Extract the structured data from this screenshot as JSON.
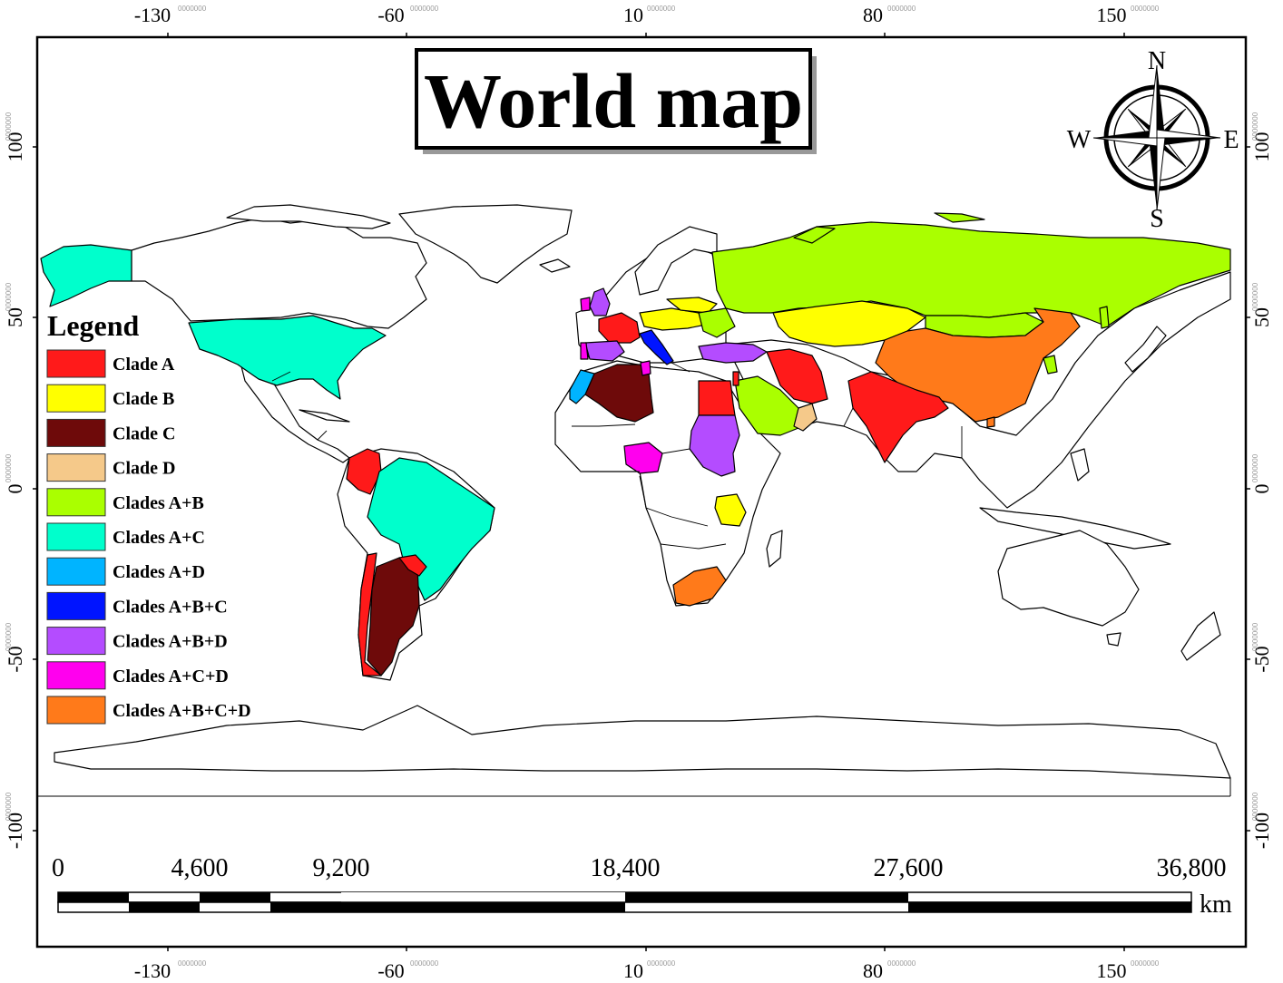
{
  "title": "World map",
  "axis": {
    "x_ticks": [
      {
        "label": "-130",
        "sup": "0000000"
      },
      {
        "label": "-60",
        "sup": "0000000"
      },
      {
        "label": "10",
        "sup": "0000000"
      },
      {
        "label": "80",
        "sup": "0000000"
      },
      {
        "label": "150",
        "sup": "0000000"
      }
    ],
    "y_ticks": [
      {
        "label": "100",
        "sup": "0000000"
      },
      {
        "label": "50",
        "sup": "0000000"
      },
      {
        "label": "0",
        "sup": "0000000"
      },
      {
        "label": "-50",
        "sup": "0000000"
      },
      {
        "label": "-100",
        "sup": "0000000"
      }
    ]
  },
  "compass": {
    "n": "N",
    "s": "S",
    "e": "E",
    "w": "W"
  },
  "legend": {
    "title": "Legend",
    "items": [
      {
        "label": "Clade A",
        "color": "#ff1a1a"
      },
      {
        "label": "Clade B",
        "color": "#ffff00"
      },
      {
        "label": "Clade C",
        "color": "#6e0a0a"
      },
      {
        "label": "Clade D",
        "color": "#f5c98a"
      },
      {
        "label": "Clades A+B",
        "color": "#aaff00"
      },
      {
        "label": "Clades A+C",
        "color": "#00ffcc"
      },
      {
        "label": "Clades A+D",
        "color": "#00b4ff"
      },
      {
        "label": "Clades A+B+C",
        "color": "#0014ff"
      },
      {
        "label": "Clades A+B+D",
        "color": "#b44cff"
      },
      {
        "label": "Clades A+C+D",
        "color": "#ff00ee"
      },
      {
        "label": "Clades A+B+C+D",
        "color": "#ff7a1a"
      }
    ]
  },
  "scale_bar": {
    "labels": [
      "0",
      "4,600",
      "9,200",
      "18,400",
      "27,600",
      "36,800"
    ],
    "unit": "km"
  },
  "regions": [
    {
      "name": "Russia",
      "clade": "Clades A+B"
    },
    {
      "name": "China",
      "clade": "Clades A+B+C+D"
    },
    {
      "name": "USA",
      "clade": "Clades A+C"
    },
    {
      "name": "Alaska",
      "clade": "Clades A+C"
    },
    {
      "name": "Brazil",
      "clade": "Clades A+C"
    },
    {
      "name": "Argentina",
      "clade": "Clade C"
    },
    {
      "name": "Chile",
      "clade": "Clade A"
    },
    {
      "name": "Colombia",
      "clade": "Clade A"
    },
    {
      "name": "India",
      "clade": "Clade A"
    },
    {
      "name": "Iran",
      "clade": "Clade A"
    },
    {
      "name": "Egypt",
      "clade": "Clade A"
    },
    {
      "name": "France",
      "clade": "Clade A"
    },
    {
      "name": "Algeria",
      "clade": "Clade C"
    },
    {
      "name": "Morocco",
      "clade": "Clades A+D"
    },
    {
      "name": "Nigeria",
      "clade": "Clades A+C+D"
    },
    {
      "name": "Sudan",
      "clade": "Clades A+B+D"
    },
    {
      "name": "Spain",
      "clade": "Clades A+B+D"
    },
    {
      "name": "UK",
      "clade": "Clades A+B+D"
    },
    {
      "name": "Turkey",
      "clade": "Clades A+B+D"
    },
    {
      "name": "Italy",
      "clade": "Clades A+B+C"
    },
    {
      "name": "Kazakhstan",
      "clade": "Clade B"
    },
    {
      "name": "Tanzania",
      "clade": "Clade B"
    },
    {
      "name": "Saudi Arabia",
      "clade": "Clades A+B"
    },
    {
      "name": "Mongolia",
      "clade": "Clades A+B"
    },
    {
      "name": "Oman",
      "clade": "Clade D"
    },
    {
      "name": "South Africa",
      "clade": "Clades A+B+C+D"
    }
  ]
}
